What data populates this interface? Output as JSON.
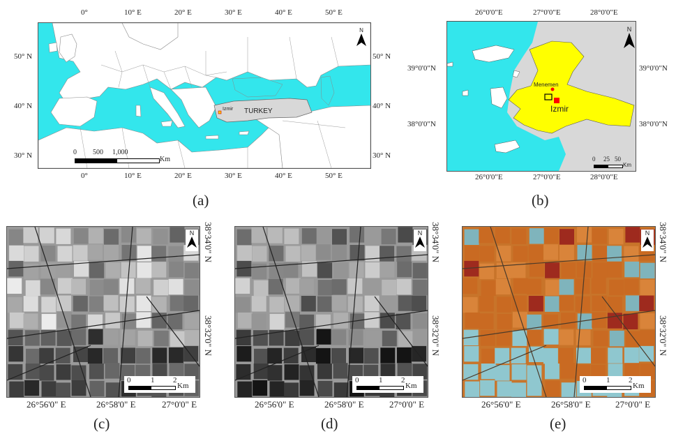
{
  "panel_a": {
    "caption": "(a)",
    "top_lon_labels": [
      "0°",
      "10° E",
      "20° E",
      "30° E",
      "40° E",
      "50° E"
    ],
    "bottom_lon_labels": [
      "0°",
      "10° E",
      "20° E",
      "30° E",
      "40° E",
      "50° E"
    ],
    "left_lat_labels": [
      "50° N",
      "40° N",
      "30° N"
    ],
    "right_lat_labels": [
      "50° N",
      "40° N",
      "30° N"
    ],
    "country_label": "TURKEY",
    "city_label": "Izmir",
    "north": "N",
    "scale_labels": [
      "0",
      "500",
      "1,000"
    ],
    "scale_unit": "Km",
    "colors": {
      "sea": "#33e6ec",
      "land": "#ffffff",
      "turkey": "#d8d8d8"
    }
  },
  "panel_b": {
    "caption": "(b)",
    "top_lon_labels": [
      "26°0'0\"E",
      "27°0'0\"E",
      "28°0'0\"E"
    ],
    "bottom_lon_labels": [
      "26°0'0\"E",
      "27°0'0\"E",
      "28°0'0\"E"
    ],
    "left_lat_labels": [
      "39°0'0\"N",
      "38°0'0\"N"
    ],
    "right_lat_labels": [
      "39°0'0\"N",
      "38°0'0\"N"
    ],
    "city_label": "Izmir",
    "town_label": "Menemen",
    "north": "N",
    "scale_labels": [
      "0",
      "25",
      "50"
    ],
    "scale_unit": "Km",
    "colors": {
      "sea": "#33e6ec",
      "province": "#ffff00",
      "land": "#d8d8d8",
      "city": "#ff0000"
    }
  },
  "panels_cde": [
    {
      "caption": "(c)",
      "style": "sar",
      "bottom_lon_labels": [
        "26°56'0\" E",
        "26°58'0\" E",
        "27°0'0\" E"
      ],
      "right_lat_labels": [
        "38°34'0\" N",
        "38°32'0\" N"
      ],
      "north": "N",
      "scale_labels": [
        "0",
        "1",
        "2"
      ],
      "scale_unit": "Km"
    },
    {
      "caption": "(d)",
      "style": "sar2",
      "bottom_lon_labels": [
        "26°56'0\" E",
        "26°58'0\" E",
        "27°0'0\" E"
      ],
      "right_lat_labels": [
        "38°34'0\" N",
        "38°32'0\" N"
      ],
      "north": "N",
      "scale_labels": [
        "0",
        "1",
        "2"
      ],
      "scale_unit": "Km"
    },
    {
      "caption": "(e)",
      "style": "optical",
      "bottom_lon_labels": [
        "26°56'0\" E",
        "26°58'0\" E",
        "27°0'0\" E"
      ],
      "right_lat_labels": [
        "38°34'0\" N",
        "38°32'0\" N"
      ],
      "north": "N",
      "scale_labels": [
        "0",
        "1",
        "2"
      ],
      "scale_unit": "Km"
    }
  ]
}
